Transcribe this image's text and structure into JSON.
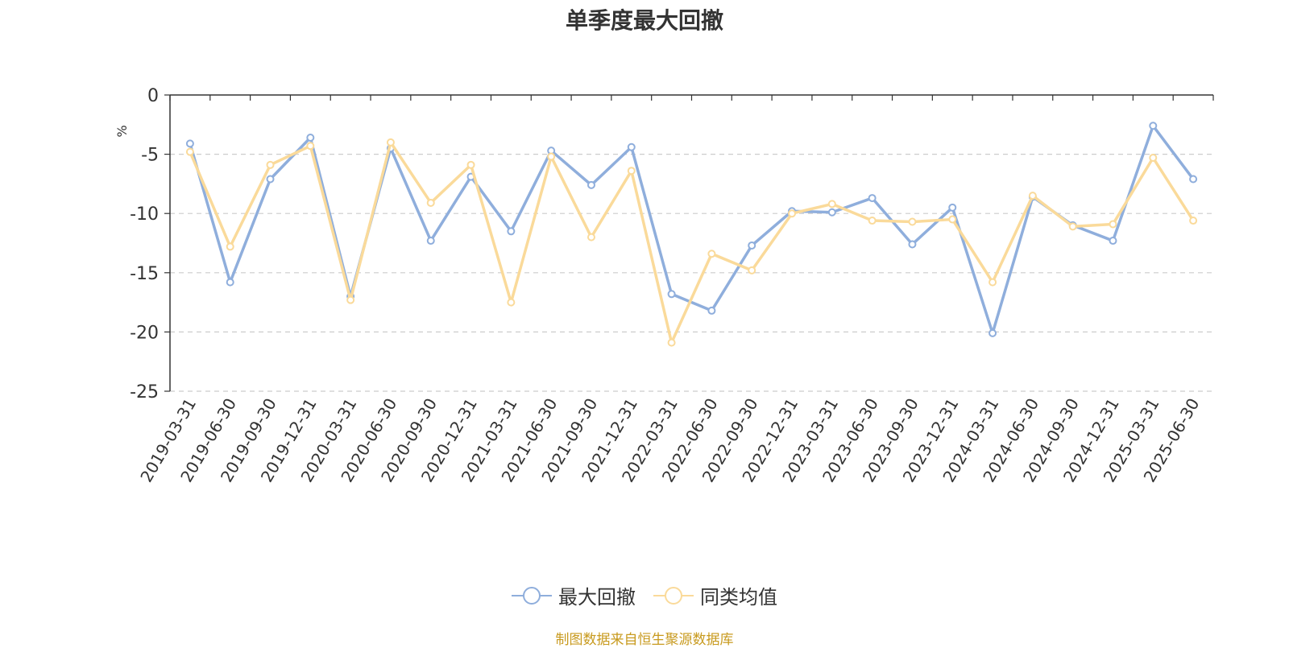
{
  "chart_data": {
    "type": "line",
    "title": "单季度最大回撤",
    "ylabel": "%",
    "ylim": [
      -25,
      0
    ],
    "yticks": [
      0,
      -5,
      -10,
      -15,
      -20,
      -25
    ],
    "grid": true,
    "legend_position": "bottom",
    "categories": [
      "2019-03-31",
      "2019-06-30",
      "2019-09-30",
      "2019-12-31",
      "2020-03-31",
      "2020-06-30",
      "2020-09-30",
      "2020-12-31",
      "2021-03-31",
      "2021-06-30",
      "2021-09-30",
      "2021-12-31",
      "2022-03-31",
      "2022-06-30",
      "2022-09-30",
      "2022-12-31",
      "2023-03-31",
      "2023-06-30",
      "2023-09-30",
      "2023-12-31",
      "2024-03-31",
      "2024-06-30",
      "2024-09-30",
      "2024-12-31",
      "2025-03-31",
      "2025-06-30"
    ],
    "series": [
      {
        "name": "最大回撤",
        "color": "#8FAEDC",
        "values": [
          -4.1,
          -15.8,
          -7.1,
          -3.6,
          -17.0,
          -4.5,
          -12.3,
          -6.9,
          -11.5,
          -4.7,
          -7.6,
          -4.4,
          -16.8,
          -18.2,
          -12.7,
          -9.8,
          -9.9,
          -8.7,
          -12.6,
          -9.5,
          -20.1,
          -8.6,
          -11.0,
          -12.3,
          -2.6,
          -7.1
        ]
      },
      {
        "name": "同类均值",
        "color": "#FADA9A",
        "values": [
          -4.8,
          -12.8,
          -5.9,
          -4.3,
          -17.3,
          -4.0,
          -9.1,
          -5.9,
          -17.5,
          -5.2,
          -12.0,
          -6.4,
          -20.9,
          -13.4,
          -14.8,
          -10.0,
          -9.2,
          -10.6,
          -10.7,
          -10.5,
          -15.8,
          -8.5,
          -11.1,
          -10.9,
          -5.3,
          -10.6
        ]
      }
    ]
  },
  "footer": {
    "source": "制图数据来自恒生聚源数据库"
  }
}
